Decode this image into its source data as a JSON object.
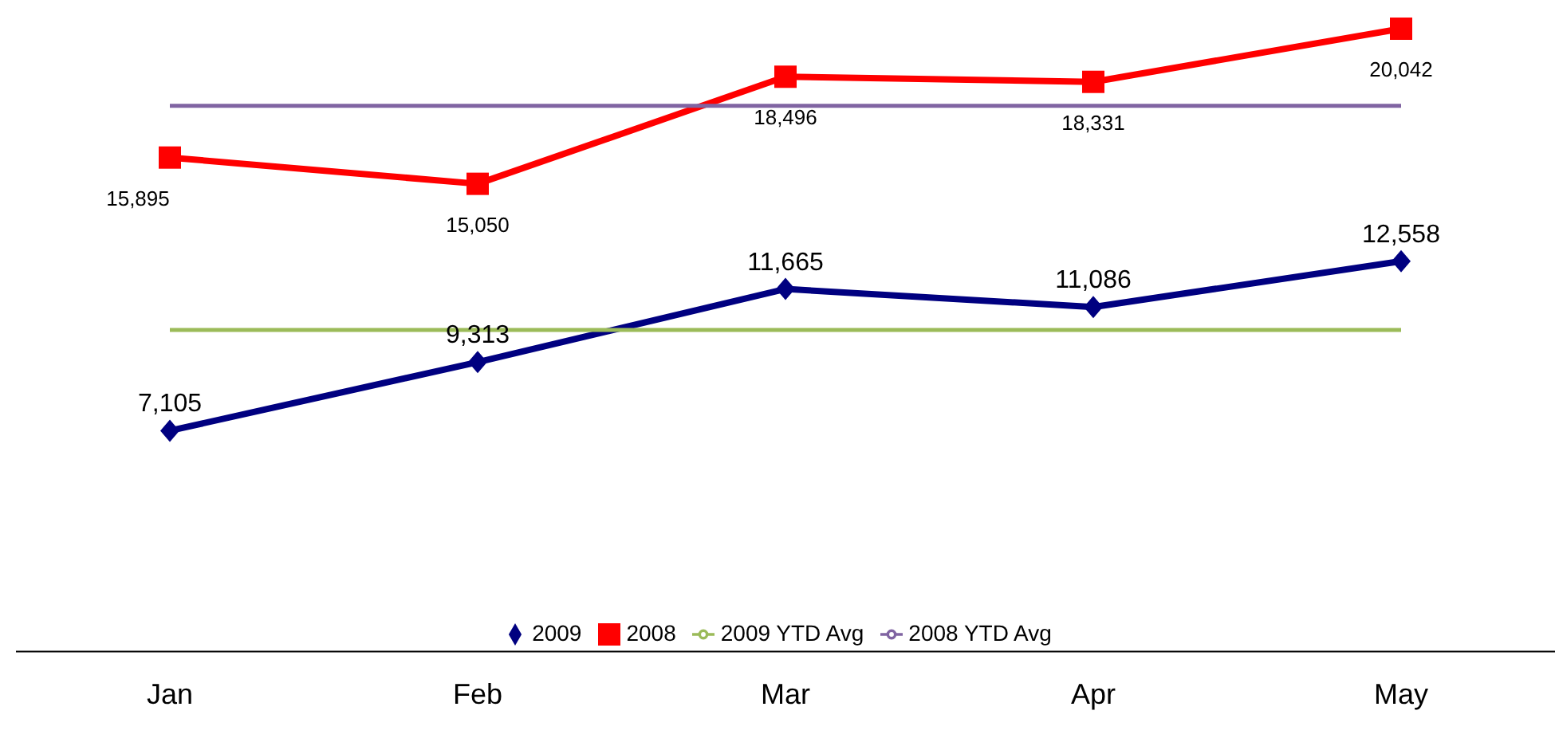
{
  "chart_data": {
    "type": "line",
    "categories": [
      "Jan",
      "Feb",
      "Mar",
      "Apr",
      "May"
    ],
    "series": [
      {
        "name": "2009",
        "color": "#000080",
        "marker": "diamond",
        "values": [
          7105,
          9313,
          11665,
          11086,
          12558
        ],
        "value_labels": [
          "7,105",
          "9,313",
          "11,665",
          "11,086",
          "12,558"
        ]
      },
      {
        "name": "2008",
        "color": "#ff0000",
        "marker": "square",
        "values": [
          15895,
          15050,
          18496,
          18331,
          20042
        ],
        "value_labels": [
          "15,895",
          "15,050",
          "18,496",
          "18,331",
          "20,042"
        ]
      },
      {
        "name": "2009 YTD Avg",
        "color": "#9bbb59",
        "marker": "none",
        "values": [
          10345,
          10345,
          10345,
          10345,
          10345
        ]
      },
      {
        "name": "2008 YTD Avg",
        "color": "#8064a2",
        "marker": "none",
        "values": [
          17563,
          17563,
          17563,
          17563,
          17563
        ]
      }
    ],
    "legend": "bottom",
    "grid": false
  }
}
